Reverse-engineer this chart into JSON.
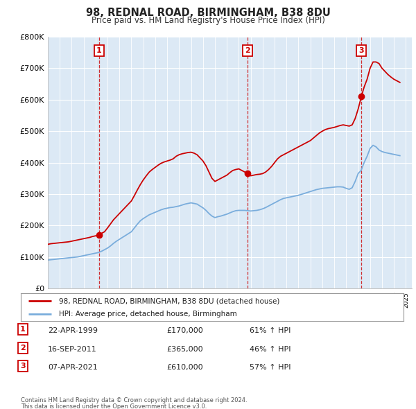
{
  "title": "98, REDNAL ROAD, BIRMINGHAM, B38 8DU",
  "subtitle": "Price paid vs. HM Land Registry's House Price Index (HPI)",
  "house_color": "#cc0000",
  "hpi_color": "#7aaddc",
  "background_color": "#ffffff",
  "chart_bg": "#dce9f5",
  "grid_color": "#ffffff",
  "ylim": [
    0,
    800000
  ],
  "yticks": [
    0,
    100000,
    200000,
    300000,
    400000,
    500000,
    600000,
    700000,
    800000
  ],
  "ytick_labels": [
    "£0",
    "£100K",
    "£200K",
    "£300K",
    "£400K",
    "£500K",
    "£600K",
    "£700K",
    "£800K"
  ],
  "legend_house": "98, REDNAL ROAD, BIRMINGHAM, B38 8DU (detached house)",
  "legend_hpi": "HPI: Average price, detached house, Birmingham",
  "transactions": [
    {
      "num": 1,
      "date": "22-APR-1999",
      "price": 170000,
      "pct": "61%",
      "dir": "↑",
      "year": 1999.3
    },
    {
      "num": 2,
      "date": "16-SEP-2011",
      "price": 365000,
      "pct": "46%",
      "dir": "↑",
      "year": 2011.75
    },
    {
      "num": 3,
      "date": "07-APR-2021",
      "price": 610000,
      "pct": "57%",
      "dir": "↑",
      "year": 2021.27
    }
  ],
  "footnote1": "Contains HM Land Registry data © Crown copyright and database right 2024.",
  "footnote2": "This data is licensed under the Open Government Licence v3.0.",
  "house_prices_x": [
    1995.0,
    1995.25,
    1995.5,
    1995.75,
    1996.0,
    1996.25,
    1996.5,
    1996.75,
    1997.0,
    1997.25,
    1997.5,
    1997.75,
    1998.0,
    1998.25,
    1998.5,
    1998.75,
    1999.0,
    1999.3,
    1999.5,
    1999.75,
    2000.0,
    2000.25,
    2000.5,
    2000.75,
    2001.0,
    2001.25,
    2001.5,
    2001.75,
    2002.0,
    2002.25,
    2002.5,
    2002.75,
    2003.0,
    2003.25,
    2003.5,
    2003.75,
    2004.0,
    2004.25,
    2004.5,
    2004.75,
    2005.0,
    2005.25,
    2005.5,
    2005.75,
    2006.0,
    2006.25,
    2006.5,
    2006.75,
    2007.0,
    2007.25,
    2007.5,
    2007.75,
    2008.0,
    2008.25,
    2008.5,
    2008.75,
    2009.0,
    2009.25,
    2009.5,
    2009.75,
    2010.0,
    2010.25,
    2010.5,
    2010.75,
    2011.0,
    2011.25,
    2011.5,
    2011.75,
    2012.0,
    2012.25,
    2012.5,
    2012.75,
    2013.0,
    2013.25,
    2013.5,
    2013.75,
    2014.0,
    2014.25,
    2014.5,
    2014.75,
    2015.0,
    2015.25,
    2015.5,
    2015.75,
    2016.0,
    2016.25,
    2016.5,
    2016.75,
    2017.0,
    2017.25,
    2017.5,
    2017.75,
    2018.0,
    2018.25,
    2018.5,
    2018.75,
    2019.0,
    2019.25,
    2019.5,
    2019.75,
    2020.0,
    2020.25,
    2020.5,
    2020.75,
    2021.0,
    2021.27,
    2021.5,
    2021.75,
    2022.0,
    2022.25,
    2022.5,
    2022.75,
    2023.0,
    2023.25,
    2023.5,
    2023.75,
    2024.0,
    2024.25,
    2024.5
  ],
  "house_prices_y": [
    140000,
    142000,
    143000,
    144000,
    145000,
    146000,
    147000,
    148000,
    150000,
    152000,
    154000,
    156000,
    158000,
    160000,
    162000,
    165000,
    167000,
    170000,
    175000,
    180000,
    192000,
    205000,
    218000,
    228000,
    238000,
    248000,
    258000,
    268000,
    278000,
    295000,
    313000,
    330000,
    345000,
    358000,
    370000,
    378000,
    385000,
    392000,
    398000,
    402000,
    405000,
    408000,
    412000,
    420000,
    425000,
    428000,
    430000,
    432000,
    433000,
    430000,
    425000,
    415000,
    405000,
    390000,
    370000,
    350000,
    340000,
    345000,
    350000,
    355000,
    360000,
    368000,
    375000,
    378000,
    380000,
    375000,
    370000,
    365000,
    358000,
    360000,
    362000,
    363000,
    365000,
    370000,
    378000,
    388000,
    400000,
    412000,
    420000,
    425000,
    430000,
    435000,
    440000,
    445000,
    450000,
    455000,
    460000,
    465000,
    470000,
    478000,
    486000,
    494000,
    500000,
    505000,
    508000,
    510000,
    512000,
    515000,
    518000,
    520000,
    518000,
    516000,
    520000,
    540000,
    570000,
    610000,
    640000,
    665000,
    700000,
    720000,
    720000,
    715000,
    700000,
    690000,
    680000,
    672000,
    665000,
    660000,
    655000
  ],
  "hpi_x": [
    1995.0,
    1995.25,
    1995.5,
    1995.75,
    1996.0,
    1996.25,
    1996.5,
    1996.75,
    1997.0,
    1997.25,
    1997.5,
    1997.75,
    1998.0,
    1998.25,
    1998.5,
    1998.75,
    1999.0,
    1999.25,
    1999.5,
    1999.75,
    2000.0,
    2000.25,
    2000.5,
    2000.75,
    2001.0,
    2001.25,
    2001.5,
    2001.75,
    2002.0,
    2002.25,
    2002.5,
    2002.75,
    2003.0,
    2003.25,
    2003.5,
    2003.75,
    2004.0,
    2004.25,
    2004.5,
    2004.75,
    2005.0,
    2005.25,
    2005.5,
    2005.75,
    2006.0,
    2006.25,
    2006.5,
    2006.75,
    2007.0,
    2007.25,
    2007.5,
    2007.75,
    2008.0,
    2008.25,
    2008.5,
    2008.75,
    2009.0,
    2009.25,
    2009.5,
    2009.75,
    2010.0,
    2010.25,
    2010.5,
    2010.75,
    2011.0,
    2011.25,
    2011.5,
    2011.75,
    2012.0,
    2012.25,
    2012.5,
    2012.75,
    2013.0,
    2013.25,
    2013.5,
    2013.75,
    2014.0,
    2014.25,
    2014.5,
    2014.75,
    2015.0,
    2015.25,
    2015.5,
    2015.75,
    2016.0,
    2016.25,
    2016.5,
    2016.75,
    2017.0,
    2017.25,
    2017.5,
    2017.75,
    2018.0,
    2018.25,
    2018.5,
    2018.75,
    2019.0,
    2019.25,
    2019.5,
    2019.75,
    2020.0,
    2020.25,
    2020.5,
    2020.75,
    2021.0,
    2021.25,
    2021.5,
    2021.75,
    2022.0,
    2022.25,
    2022.5,
    2022.75,
    2023.0,
    2023.25,
    2023.5,
    2023.75,
    2024.0,
    2024.25,
    2024.5
  ],
  "hpi_y": [
    90000,
    91000,
    92000,
    93000,
    94000,
    95000,
    96000,
    97000,
    98000,
    99000,
    100000,
    102000,
    104000,
    106000,
    108000,
    110000,
    112000,
    114000,
    118000,
    123000,
    128000,
    135000,
    143000,
    150000,
    156000,
    162000,
    168000,
    174000,
    180000,
    192000,
    204000,
    215000,
    222000,
    228000,
    234000,
    238000,
    242000,
    246000,
    250000,
    253000,
    255000,
    257000,
    258000,
    260000,
    262000,
    265000,
    268000,
    270000,
    272000,
    270000,
    268000,
    262000,
    256000,
    248000,
    238000,
    230000,
    225000,
    228000,
    230000,
    233000,
    236000,
    240000,
    244000,
    247000,
    248000,
    248000,
    248000,
    247000,
    246000,
    247000,
    248000,
    250000,
    253000,
    257000,
    262000,
    267000,
    272000,
    277000,
    282000,
    286000,
    288000,
    290000,
    292000,
    294000,
    296000,
    299000,
    302000,
    305000,
    308000,
    311000,
    314000,
    316000,
    318000,
    319000,
    320000,
    321000,
    322000,
    323000,
    323000,
    322000,
    318000,
    315000,
    320000,
    340000,
    365000,
    375000,
    400000,
    420000,
    445000,
    455000,
    450000,
    440000,
    435000,
    432000,
    430000,
    428000,
    426000,
    424000,
    422000
  ]
}
